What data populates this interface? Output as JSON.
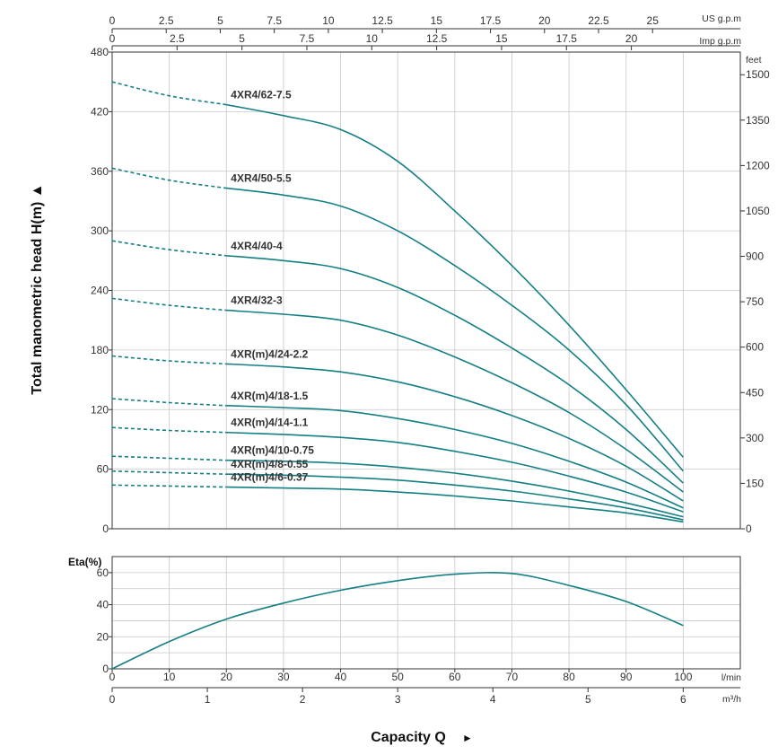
{
  "chart_data": [
    {
      "type": "line",
      "title": "",
      "ylabel": "Total manometric head H(m)",
      "xlabel": "Capacity Q",
      "x_unit": "l/min",
      "xlim": [
        0,
        110
      ],
      "ylim": [
        0,
        480
      ],
      "yticks": [
        0,
        60,
        120,
        180,
        240,
        300,
        360,
        420,
        480
      ],
      "right_axis": {
        "unit": "feet",
        "ticks": [
          0,
          150,
          300,
          450,
          600,
          750,
          900,
          1050,
          1200,
          1350,
          1500
        ]
      },
      "top_axis_us": {
        "unit": "US g.p.m",
        "ticks": [
          "0",
          "2.5",
          "5",
          "7.5",
          "10",
          "12.5",
          "15",
          "17.5",
          "20",
          "22.5",
          "25"
        ]
      },
      "top_axis_imp": {
        "unit": "Imp g.p.m",
        "ticks": [
          "0",
          "2.5",
          "5",
          "7.5",
          "10",
          "12.5",
          "15",
          "17.5",
          "20"
        ]
      },
      "dashed_segment_x": [
        0,
        20
      ],
      "x": [
        0,
        10,
        20,
        30,
        40,
        50,
        60,
        70,
        80,
        90,
        100
      ],
      "series": [
        {
          "name": "4XR4/62-7.5",
          "values": [
            450,
            436,
            427,
            416,
            402,
            370,
            320,
            265,
            205,
            140,
            72
          ]
        },
        {
          "name": "4XR4/50-5.5",
          "values": [
            363,
            351,
            343,
            336,
            325,
            300,
            265,
            225,
            180,
            125,
            58
          ]
        },
        {
          "name": "4XR4/40-4",
          "values": [
            290,
            281,
            275,
            270,
            262,
            243,
            215,
            182,
            145,
            100,
            46
          ]
        },
        {
          "name": "4XR4/32-3",
          "values": [
            232,
            225,
            220,
            216,
            210,
            195,
            173,
            147,
            117,
            80,
            37
          ]
        },
        {
          "name": "4XR(m)4/24-2.2",
          "values": [
            174,
            169,
            166,
            163,
            158,
            148,
            133,
            114,
            91,
            63,
            28
          ]
        },
        {
          "name": "4XR(m)4/18-1.5",
          "values": [
            131,
            127,
            124,
            122,
            119,
            111,
            100,
            86,
            68,
            47,
            21
          ]
        },
        {
          "name": "4XR(m)4/14-1.1",
          "values": [
            102,
            99,
            97,
            95,
            92,
            87,
            78,
            67,
            53,
            37,
            17
          ]
        },
        {
          "name": "4XR(m)4/10-0.75",
          "values": [
            73,
            71,
            69,
            68,
            66,
            62,
            56,
            48,
            38,
            26,
            12
          ]
        },
        {
          "name": "4XR(m)4/8-0.55",
          "values": [
            58,
            56.5,
            55,
            54,
            52,
            49,
            44,
            38,
            30,
            21,
            9
          ]
        },
        {
          "name": "4XR(m)4/6-0.37",
          "values": [
            44,
            43,
            42,
            41,
            40,
            37,
            33,
            28,
            22,
            16,
            7
          ]
        }
      ],
      "line_color": "#147f84",
      "grid": true
    },
    {
      "type": "line",
      "ylabel": "Eta(%)",
      "xlim": [
        0,
        110
      ],
      "ylim": [
        0,
        70
      ],
      "yticks": [
        0,
        20,
        40,
        60
      ],
      "x": [
        0,
        10,
        20,
        30,
        40,
        50,
        60,
        70,
        80,
        90,
        100
      ],
      "series": [
        {
          "values": [
            0,
            17,
            31,
            41,
            49,
            55,
            59,
            59.5,
            52,
            42,
            27
          ]
        }
      ],
      "x_axis_lmin": {
        "unit": "l/min",
        "ticks": [
          "0",
          "10",
          "20",
          "30",
          "40",
          "50",
          "60",
          "70",
          "80",
          "90",
          "100"
        ]
      },
      "x_axis_m3h": {
        "unit": "m³/h",
        "ticks": [
          "0",
          "1",
          "2",
          "3",
          "4",
          "5",
          "6"
        ]
      },
      "line_color": "#147f84",
      "grid": true
    }
  ],
  "labels": {
    "y_title": "Total manometric head H(m) ▲",
    "eta_title": "Eta(%)",
    "x_title": "Capacity Q",
    "x_arrow": "►",
    "feet": "feet",
    "us_gpm": "US g.p.m",
    "imp_gpm": "Imp g.p.m",
    "lmin": "l/min",
    "m3h": "m³/h"
  }
}
